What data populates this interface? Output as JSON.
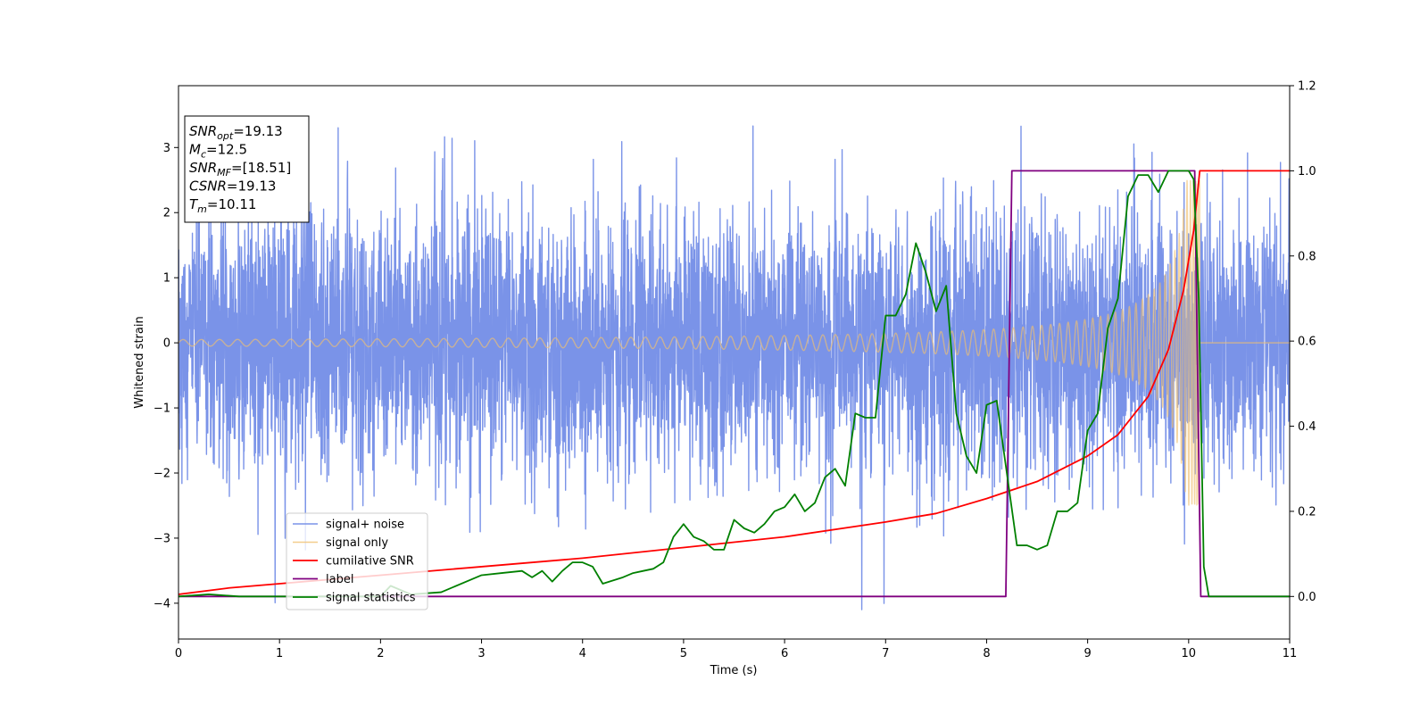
{
  "chart_data": {
    "type": "line",
    "title": "",
    "xlabel": "Time (s)",
    "ylabel": "Whitened strain",
    "xlim": [
      0,
      11
    ],
    "ylim": [
      -4.55,
      3.95
    ],
    "y2lim": [
      -0.1,
      1.2
    ],
    "x_ticks": [
      "0",
      "1",
      "2",
      "3",
      "4",
      "5",
      "6",
      "7",
      "8",
      "9",
      "10",
      "11"
    ],
    "y_ticks": [
      "3",
      "2",
      "1",
      "0",
      "−1",
      "−2",
      "−3",
      "−4"
    ],
    "y2_ticks": [
      "1.2",
      "1.0",
      "0.8",
      "0.6",
      "0.4",
      "0.2",
      "0.0"
    ],
    "legend_position": "lower-left",
    "info_box": {
      "lines": [
        {
          "math": "SNR",
          "sub": "opt",
          "rest": "=19.13"
        },
        {
          "math": "M",
          "sub": "c",
          "rest": "=12.5"
        },
        {
          "math": "SNR",
          "sub": "MF",
          "rest": "=[18.51]"
        },
        {
          "math": "CSNR",
          "sub": "",
          "rest": "=19.13"
        },
        {
          "math": "T",
          "sub": "m",
          "rest": "=10.11"
        }
      ]
    },
    "series": [
      {
        "name": "signal+ noise",
        "axis": "left",
        "color": "#7a93e8",
        "kind": "noise",
        "std": 1.0,
        "x_range": [
          0,
          11
        ]
      },
      {
        "name": "signal only",
        "axis": "left",
        "color": "#f0c070",
        "kind": "chirp",
        "merger_time": 10.11,
        "amplitude_start": 0.05,
        "amplitude_peak": 2.5
      },
      {
        "name": "cumilative SNR",
        "axis": "right",
        "color": "#ff0000",
        "x": [
          0,
          0.5,
          1,
          2,
          3,
          4,
          5,
          6,
          7,
          7.5,
          8,
          8.5,
          9,
          9.3,
          9.6,
          9.8,
          9.95,
          10.05,
          10.11,
          11
        ],
        "y": [
          0.005,
          0.02,
          0.03,
          0.05,
          0.07,
          0.09,
          0.115,
          0.14,
          0.175,
          0.195,
          0.23,
          0.27,
          0.33,
          0.38,
          0.47,
          0.58,
          0.72,
          0.86,
          1.0,
          1.0
        ]
      },
      {
        "name": "label",
        "axis": "right",
        "color": "#800080",
        "x": [
          0,
          8.19,
          8.25,
          10.06,
          10.12,
          11
        ],
        "y": [
          0,
          0,
          1,
          1,
          0,
          0
        ]
      },
      {
        "name": "signal statistics",
        "axis": "right",
        "color": "#008000",
        "x": [
          0,
          0.3,
          0.6,
          1.0,
          1.5,
          2.0,
          2.1,
          2.3,
          2.6,
          3.0,
          3.2,
          3.4,
          3.5,
          3.6,
          3.7,
          3.8,
          3.9,
          4.0,
          4.1,
          4.2,
          4.4,
          4.5,
          4.6,
          4.7,
          4.8,
          4.9,
          5.0,
          5.1,
          5.2,
          5.3,
          5.4,
          5.5,
          5.6,
          5.7,
          5.8,
          5.9,
          6.0,
          6.1,
          6.2,
          6.3,
          6.4,
          6.5,
          6.6,
          6.7,
          6.8,
          6.9,
          7.0,
          7.1,
          7.2,
          7.3,
          7.4,
          7.5,
          7.6,
          7.7,
          7.8,
          7.9,
          8.0,
          8.1,
          8.2,
          8.3,
          8.4,
          8.5,
          8.6,
          8.7,
          8.8,
          8.9,
          9.0,
          9.1,
          9.2,
          9.3,
          9.4,
          9.5,
          9.6,
          9.7,
          9.8,
          9.9,
          10.0,
          10.05,
          10.1,
          10.15,
          10.2,
          11
        ],
        "y": [
          0.0,
          0.005,
          0.0,
          0.0,
          0.0,
          0.0,
          0.025,
          0.005,
          0.01,
          0.05,
          0.055,
          0.06,
          0.045,
          0.06,
          0.035,
          0.06,
          0.08,
          0.08,
          0.07,
          0.03,
          0.045,
          0.055,
          0.06,
          0.065,
          0.08,
          0.14,
          0.17,
          0.14,
          0.13,
          0.11,
          0.11,
          0.18,
          0.16,
          0.15,
          0.17,
          0.2,
          0.21,
          0.24,
          0.2,
          0.22,
          0.28,
          0.3,
          0.26,
          0.43,
          0.42,
          0.42,
          0.66,
          0.66,
          0.71,
          0.83,
          0.76,
          0.67,
          0.73,
          0.43,
          0.33,
          0.29,
          0.45,
          0.46,
          0.29,
          0.12,
          0.12,
          0.11,
          0.12,
          0.2,
          0.2,
          0.22,
          0.39,
          0.43,
          0.63,
          0.7,
          0.94,
          0.99,
          0.99,
          0.95,
          1.0,
          1.0,
          1.0,
          0.98,
          0.7,
          0.07,
          0.0,
          0.0
        ]
      }
    ]
  }
}
